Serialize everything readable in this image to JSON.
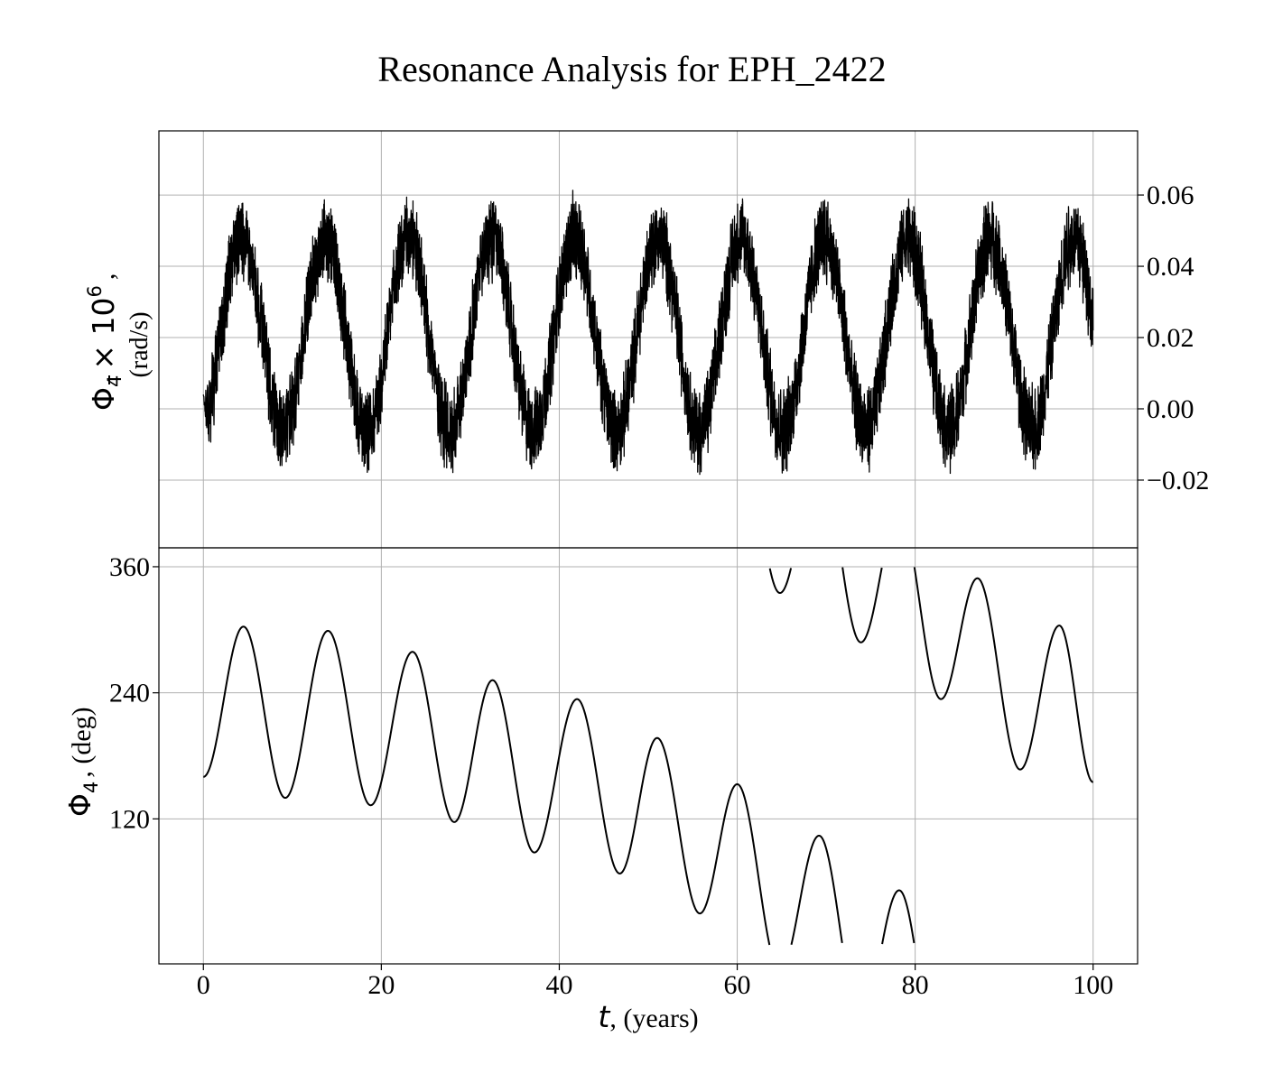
{
  "title": "Resonance Analysis for EPH_2422",
  "chart_data": [
    {
      "type": "line",
      "panel": "top",
      "ylabel_symbol": "Φ",
      "ylabel_subscript": "4",
      "ylabel_factor": "× 10",
      "ylabel_exponent": "6",
      "ylabel_comma": ",",
      "ylabel_unit": "(rad/s)",
      "y_axis_side": "right",
      "xlim": [
        -5,
        105
      ],
      "ylim": [
        -0.039,
        0.078
      ],
      "yticks": [
        -0.02,
        0.0,
        0.02,
        0.04,
        0.06
      ],
      "ytick_labels": [
        "−0.02",
        "0.00",
        "0.02",
        "0.04",
        "0.06"
      ],
      "grid": true,
      "series": [
        {
          "color": "#000000",
          "t_start": 0,
          "t_end": 100,
          "mean": 0.021,
          "oscillation_amplitude": 0.027,
          "oscillation_period_years": 9.35,
          "noise_band": [
            -0.012,
            0.012
          ],
          "start_value": 0.004,
          "end_value": 0.022
        }
      ]
    },
    {
      "type": "line",
      "panel": "bottom",
      "ylabel_symbol": "Φ",
      "ylabel_subscript": "4",
      "ylabel_rest": ", (deg)",
      "xlabel_symbol": "t",
      "xlabel_rest": ", (years)",
      "xlim": [
        -5,
        105
      ],
      "ylim": [
        -18,
        378
      ],
      "xticks": [
        0,
        20,
        40,
        60,
        80,
        100
      ],
      "xtick_labels": [
        "0",
        "20",
        "40",
        "60",
        "80",
        "100"
      ],
      "yticks": [
        120,
        240,
        360
      ],
      "ytick_labels": [
        "120",
        "240",
        "360"
      ],
      "grid": true,
      "wrap_modulo": 360,
      "series": [
        {
          "color": "#000000",
          "x": [
            0,
            4.5,
            9.2,
            14,
            18.8,
            23.5,
            28.2,
            32.5,
            37.2,
            42,
            46.8,
            51,
            55.8,
            60,
            64.8,
            69.2,
            73.9,
            78.2,
            82.9,
            87,
            91.8,
            96.2,
            100
          ],
          "y": [
            160,
            303,
            140,
            299,
            133,
            279,
            117,
            252,
            88,
            234,
            68,
            197,
            30,
            153,
            335,
            104,
            288,
            52,
            234,
            349,
            167,
            304,
            155
          ]
        }
      ]
    }
  ]
}
